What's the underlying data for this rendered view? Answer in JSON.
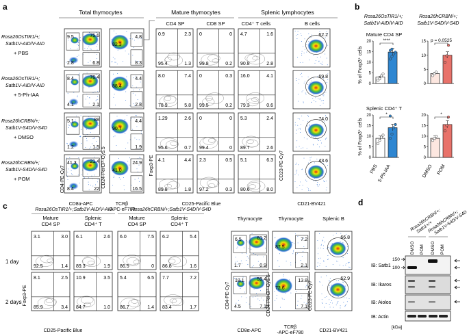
{
  "colors": {
    "pbs_fill": "#fde7e0",
    "blue": "#2e86d1",
    "red_fill": "#e8726a",
    "gate": "#333333"
  },
  "panel_labels": [
    "a",
    "b",
    "c",
    "d"
  ],
  "panel_a": {
    "section_titles": [
      "Total thymocytes",
      "Mature thymocytes",
      "Splenic lymphocytes"
    ],
    "column_titles": [
      "CD4 SP",
      "CD8 SP",
      "CD4⁺ T cells",
      "B cells"
    ],
    "row_labels": [
      [
        "Rosa26OsTIR1/+;",
        "Satb1V-AID/V-AID",
        "+ PBS"
      ],
      [
        "Rosa26OsTIR1/+;",
        "Satb1V-AID/V-AID",
        "+ 5-Ph-IAA"
      ],
      [
        "Rosa26hCRBN/+;",
        "Satb1V-S4D/V-S4D",
        "+ DMSO"
      ],
      [
        "Rosa26hCRBN/+;",
        "Satb1V-S4D/V-S4D",
        "+ POM"
      ]
    ],
    "rows": [
      {
        "total": [
          "9.5",
          "75.6",
          "2.8",
          "6.8"
        ],
        "tcr": [
          "82.3",
          "4.8",
          "8.3"
        ],
        "cd4sp": [
          "0.9",
          "2.3",
          "95.4",
          "1.3"
        ],
        "cd8sp": [
          "0",
          "0",
          "99.8",
          "0.2"
        ],
        "cd4t": [
          "4.7",
          "1.6",
          "90.8",
          "2.8"
        ],
        "bcells": "62.2"
      },
      {
        "total": [
          "8.4",
          "76.4",
          "4.1",
          "2.1"
        ],
        "tcr": [
          "88.4",
          "4.4",
          "2.8"
        ],
        "cd4sp": [
          "8.0",
          "7.4",
          "78.9",
          "5.8"
        ],
        "cd8sp": [
          "0",
          "0.3",
          "99.5",
          "0.2"
        ],
        "cd4t": [
          "16.0",
          "4.1",
          "79.3",
          "0.6"
        ],
        "bcells": "69.8"
      },
      {
        "total": [
          "5.1",
          "88",
          "1.2",
          "1.5"
        ],
        "tcr": [
          "90.7",
          "4.4",
          "1.9"
        ],
        "cd4sp": [
          "1.29",
          "2.6",
          "95.6",
          "0.7"
        ],
        "cd8sp": [
          "0",
          "0",
          "99.4",
          "0"
        ],
        "cd4t": [
          "5.3",
          "2.4",
          "89.7",
          "2.6"
        ],
        "bcells": "74.0"
      },
      {
        "total": [
          "41.3",
          "21.4",
          "8.4",
          "22"
        ],
        "tcr": [
          "41.0",
          "24.9",
          "16.5"
        ],
        "cd4sp": [
          "4.1",
          "4.4",
          "89.8",
          "1.8"
        ],
        "cd8sp": [
          "2.3",
          "0.5",
          "97.2",
          "0.3"
        ],
        "cd4t": [
          "5.1",
          "6.3",
          "80.6",
          "8.0"
        ],
        "bcells": "43.6"
      }
    ],
    "axes": {
      "cd4": "CD4-PE-Cy7",
      "cd8": "CD8α-APC",
      "cd24": "CD24-PerCP-Cy5.5",
      "tcr": "TCRβ",
      "tcr2": "-APC-eF780",
      "foxp3": "Foxp3-PE",
      "cd25": "CD25-Pacific Blue",
      "cd23": "CD23-PE-Cy7",
      "cd21": "CD21-BV421"
    }
  },
  "panel_b": {
    "header_left": [
      "Rosa26OsTIR1/+;",
      "Satb1V-AID/V-AID"
    ],
    "header_right": [
      "Rosa26hCRBN/+;",
      "Satb1V-S4D/V-S4D"
    ],
    "subplot_titles": [
      "Mature CD4 SP",
      "Splenic CD4⁺ T"
    ],
    "ylabel": "% of Foxp3⁺ cells",
    "significance": [
      "****",
      "p = 0.0525",
      "*",
      "*"
    ],
    "x_labels_left": [
      "PBS",
      "5-Ph-IAA"
    ],
    "x_labels_right": [
      "DMSO",
      "POM"
    ]
  },
  "chart_data": [
    {
      "type": "bar",
      "title": "Mature CD4 SP",
      "group": "Rosa26OsTIR1/+;Satb1V-AID/V-AID",
      "categories": [
        "PBS",
        "5-Ph-IAA"
      ],
      "values": [
        3.0,
        14.8
      ],
      "points": [
        [
          1.5,
          2.2,
          3.6,
          4.5
        ],
        [
          11.5,
          12.8,
          14.0,
          14.8,
          15.6,
          16.2
        ]
      ],
      "ylim": [
        0,
        20
      ],
      "yticks": [
        0,
        5,
        10,
        15,
        20
      ],
      "ylabel": "% of Foxp3⁺ cells",
      "significance": "****"
    },
    {
      "type": "bar",
      "title": "Mature CD4 SP",
      "group": "Rosa26hCRBN/+;Satb1V-S4D/V-S4D",
      "categories": [
        "DMSO",
        "POM"
      ],
      "values": [
        3.5,
        10.0
      ],
      "points": [
        [
          2.8,
          3.4,
          4.0
        ],
        [
          7.5,
          9.8,
          13.5
        ]
      ],
      "ylim": [
        0,
        15
      ],
      "yticks": [
        0,
        5,
        10,
        15
      ],
      "ylabel": "% of Foxp3⁺ cells",
      "significance": "p = 0.0525"
    },
    {
      "type": "bar",
      "title": "Splenic CD4⁺ T",
      "group": "Rosa26OsTIR1/+;Satb1V-AID/V-AID",
      "categories": [
        "PBS",
        "5-Ph-IAA"
      ],
      "values": [
        9.0,
        14.0
      ],
      "points": [
        [
          6.5,
          8.0,
          9.5,
          10.5
        ],
        [
          9.0,
          11.0,
          14.0,
          15.5,
          19.5
        ]
      ],
      "ylim": [
        0,
        20
      ],
      "yticks": [
        0,
        5,
        10,
        15,
        20
      ],
      "ylabel": "% of Foxp3⁺ cells",
      "significance": "*"
    },
    {
      "type": "bar",
      "title": "Splenic CD4⁺ T",
      "group": "Rosa26hCRBN/+;Satb1V-S4D/V-S4D",
      "categories": [
        "DMSO",
        "POM"
      ],
      "values": [
        9.0,
        15.5
      ],
      "points": [
        [
          8.0,
          9.0,
          10.0
        ],
        [
          12.5,
          15.0,
          19.0
        ]
      ],
      "ylim": [
        0,
        20
      ],
      "yticks": [
        0,
        5,
        10,
        15,
        20
      ],
      "ylabel": "% of Foxp3⁺ cells",
      "significance": "*"
    }
  ],
  "panel_c": {
    "group_left": "Rosa26OsTIR1/+;Satb1V-AID/V-AID",
    "group_right": "Rosa26hCRBN/+;Satb1V-S4D/V-S4D",
    "column_titles": [
      [
        "Mature",
        "CD4 SP"
      ],
      [
        "Splenic",
        "CD4⁺ T"
      ],
      [
        "Mature",
        "CD4 SP"
      ],
      [
        "Splenic",
        "CD4⁺ T"
      ],
      [
        "Thymocyte"
      ],
      [
        "Thymocyte"
      ],
      [
        "Splenic B"
      ]
    ],
    "row_labels": [
      "1 day",
      "2 days"
    ],
    "rows": [
      {
        "q1": [
          "3.1",
          "3.0",
          "92.5",
          "1.4"
        ],
        "q2": [
          "6.1",
          "2.6",
          "89.3",
          "1.9"
        ],
        "q3": [
          "6.0",
          "7.5",
          "86.5",
          "0"
        ],
        "q4": [
          "6.2",
          "5.4",
          "86.8",
          "1.6"
        ],
        "thy": [
          "6.5",
          "81.2",
          "1.7",
          "0.9"
        ],
        "tcr": [
          "87.5",
          "7.2",
          "2.1"
        ],
        "b": "66.8"
      },
      {
        "q1": [
          "8.1",
          "2.5",
          "85.9",
          "3.4"
        ],
        "q2": [
          "10.9",
          "3.5",
          "84.7",
          "1.0"
        ],
        "q3": [
          "5.4",
          "6.5",
          "86.7",
          "1.4"
        ],
        "q4": [
          "7.7",
          "7.2",
          "83.4",
          "1.7"
        ],
        "thy": [
          "18.1",
          "59.4",
          "4.5",
          "7.1"
        ],
        "tcr": [
          "72.6",
          "13.8",
          "7.1"
        ],
        "b": "62.9"
      }
    ]
  },
  "panel_d": {
    "col_headers": [
      "Rosa26hCRBN/+;",
      "Satb1+/+",
      "Rosa26hCRBN/+;",
      "Satb1V-S4D/V-S4D"
    ],
    "lane_labels": [
      "DMSO",
      "POM",
      "DMSO",
      "POM"
    ],
    "blots": [
      "IB: Satb1",
      "IB: Ikaros",
      "IB: Aiolos",
      "IB: Actin"
    ],
    "markers": [
      "150",
      "100"
    ],
    "kda": "[kDa]"
  }
}
